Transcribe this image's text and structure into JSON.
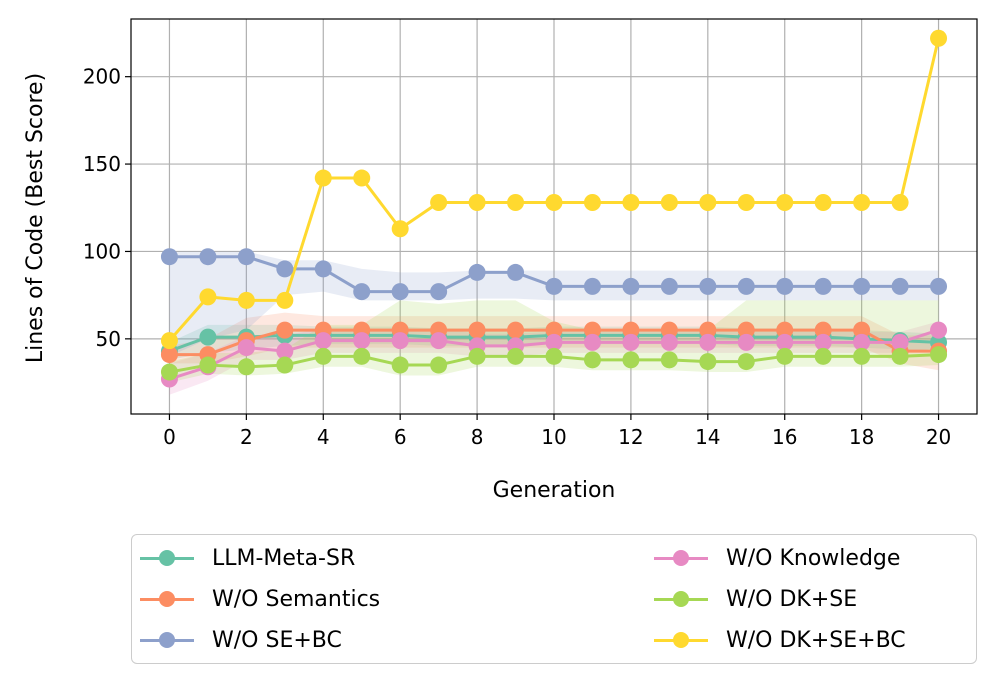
{
  "chart_data": {
    "type": "line",
    "title": "",
    "xlabel": "Generation",
    "ylabel": "Lines of Code (Best Score)",
    "xlim": [
      -1,
      21
    ],
    "ylim": [
      7,
      233
    ],
    "xticks": [
      0,
      2,
      4,
      6,
      8,
      10,
      12,
      14,
      16,
      18,
      20
    ],
    "yticks": [
      50,
      100,
      150,
      200
    ],
    "grid": true,
    "legend_position": "below",
    "x": [
      0,
      1,
      2,
      3,
      4,
      5,
      6,
      7,
      8,
      9,
      10,
      11,
      12,
      13,
      14,
      15,
      16,
      17,
      18,
      19,
      20
    ],
    "series": [
      {
        "name": "LLM-Meta-SR",
        "color": "#66c2a5",
        "values": [
          43,
          51,
          51,
          52,
          52,
          52,
          52,
          51,
          51,
          51,
          52,
          52,
          52,
          52,
          52,
          51,
          51,
          51,
          50,
          49,
          48
        ],
        "band_low": [
          38,
          42,
          44,
          46,
          47,
          47,
          47,
          46,
          46,
          46,
          47,
          47,
          47,
          47,
          47,
          46,
          46,
          46,
          45,
          44,
          43
        ],
        "band_high": [
          48,
          58,
          58,
          58,
          57,
          57,
          57,
          56,
          56,
          56,
          57,
          57,
          57,
          57,
          57,
          56,
          56,
          56,
          55,
          54,
          53
        ]
      },
      {
        "name": "W/O Semantics",
        "color": "#fc8d62",
        "values": [
          41,
          41,
          49,
          55,
          55,
          55,
          55,
          55,
          55,
          55,
          55,
          55,
          55,
          55,
          55,
          55,
          55,
          55,
          55,
          43,
          43
        ],
        "band_low": [
          36,
          36,
          40,
          45,
          45,
          45,
          45,
          45,
          45,
          45,
          45,
          45,
          45,
          45,
          45,
          45,
          45,
          45,
          45,
          36,
          32
        ],
        "band_high": [
          46,
          50,
          62,
          65,
          63,
          63,
          63,
          63,
          63,
          63,
          63,
          63,
          63,
          63,
          63,
          63,
          63,
          63,
          63,
          52,
          52
        ]
      },
      {
        "name": "W/O SE+BC",
        "color": "#8da0cb",
        "values": [
          97,
          97,
          97,
          90,
          90,
          77,
          77,
          77,
          88,
          88,
          80,
          80,
          80,
          80,
          80,
          80,
          80,
          80,
          80,
          80,
          80
        ],
        "band_low": [
          40,
          50,
          55,
          75,
          77,
          72,
          72,
          72,
          73,
          73,
          72,
          72,
          72,
          72,
          72,
          72,
          72,
          72,
          72,
          72,
          72
        ],
        "band_high": [
          100,
          100,
          100,
          95,
          95,
          90,
          88,
          88,
          89,
          89,
          89,
          89,
          89,
          89,
          89,
          89,
          89,
          89,
          89,
          89,
          89
        ]
      },
      {
        "name": "W/O Knowledge",
        "color": "#e78ac3",
        "values": [
          27,
          34,
          45,
          43,
          49,
          49,
          49,
          49,
          46,
          46,
          48,
          48,
          48,
          48,
          48,
          48,
          48,
          48,
          48,
          48,
          55
        ],
        "band_low": [
          18,
          26,
          38,
          38,
          42,
          42,
          42,
          42,
          40,
          40,
          42,
          42,
          42,
          42,
          42,
          42,
          42,
          42,
          42,
          42,
          45
        ],
        "band_high": [
          36,
          42,
          52,
          52,
          56,
          56,
          56,
          56,
          53,
          53,
          54,
          54,
          54,
          54,
          54,
          54,
          54,
          54,
          54,
          54,
          60
        ]
      },
      {
        "name": "W/O DK+SE",
        "color": "#a6d854",
        "values": [
          31,
          35,
          34,
          35,
          40,
          40,
          35,
          35,
          40,
          40,
          40,
          38,
          38,
          38,
          37,
          37,
          40,
          40,
          40,
          40,
          41
        ],
        "band_low": [
          25,
          30,
          29,
          30,
          34,
          34,
          29,
          29,
          34,
          34,
          34,
          32,
          32,
          32,
          31,
          31,
          34,
          34,
          34,
          34,
          35
        ],
        "band_high": [
          37,
          42,
          42,
          44,
          58,
          58,
          72,
          70,
          72,
          72,
          60,
          55,
          55,
          55,
          55,
          72,
          72,
          72,
          72,
          72,
          72
        ]
      },
      {
        "name": "W/O DK+SE+BC",
        "color": "#ffd92f",
        "values": [
          49,
          74,
          72,
          72,
          142,
          142,
          113,
          128,
          128,
          128,
          128,
          128,
          128,
          128,
          128,
          128,
          128,
          128,
          128,
          128,
          222
        ],
        "band_low": null,
        "band_high": null
      }
    ]
  },
  "legend": {
    "items": [
      {
        "label": "LLM-Meta-SR",
        "color": "#66c2a5"
      },
      {
        "label": "W/O Semantics",
        "color": "#fc8d62"
      },
      {
        "label": "W/O SE+BC",
        "color": "#8da0cb"
      },
      {
        "label": "W/O Knowledge",
        "color": "#e78ac3"
      },
      {
        "label": "W/O DK+SE",
        "color": "#a6d854"
      },
      {
        "label": "W/O DK+SE+BC",
        "color": "#ffd92f"
      }
    ]
  }
}
